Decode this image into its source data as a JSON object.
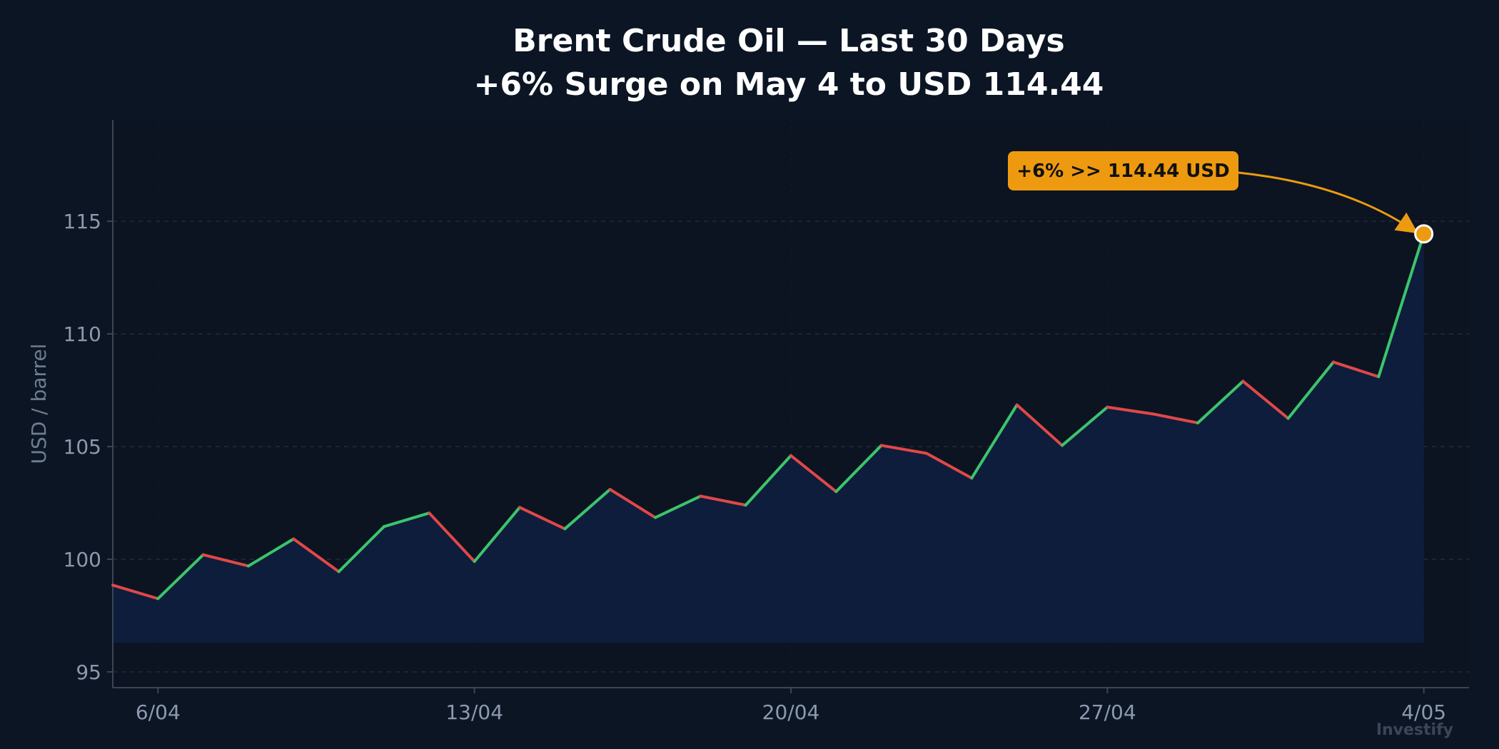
{
  "watermark": "Investify",
  "colors": {
    "background": "#0b1524",
    "plot_background": "#0c1422",
    "area_fill": "#0f1e3d",
    "up": "#3cc46b",
    "down": "#e04848",
    "callout": "#ee9a10",
    "grid": "#1e2b40",
    "axis": "#3a4658",
    "tick_text": "#8d99ad",
    "title": "#ffffff"
  },
  "chart_data": {
    "type": "line",
    "title": "Brent Crude Oil — Last 30 Days",
    "subtitle": "+6% Surge on May 4 to USD 114.44",
    "xlabel": "",
    "ylabel": "USD / barrel",
    "ylim": [
      94.3,
      119.5
    ],
    "xlim": [
      "2025-04-05",
      "2025-05-05"
    ],
    "yticks": [
      95,
      100,
      105,
      110,
      115
    ],
    "xticks": [
      {
        "date": "2025-04-06",
        "label": "6/04"
      },
      {
        "date": "2025-04-13",
        "label": "13/04"
      },
      {
        "date": "2025-04-20",
        "label": "20/04"
      },
      {
        "date": "2025-04-27",
        "label": "27/04"
      },
      {
        "date": "2025-05-04",
        "label": "4/05"
      }
    ],
    "grid": "horizontal dashed",
    "legend": "none",
    "series": [
      {
        "x": [
          "2025-04-05",
          "2025-04-06",
          "2025-04-07",
          "2025-04-08",
          "2025-04-09",
          "2025-04-10",
          "2025-04-11",
          "2025-04-12",
          "2025-04-13",
          "2025-04-14",
          "2025-04-15",
          "2025-04-16",
          "2025-04-17",
          "2025-04-18",
          "2025-04-19",
          "2025-04-20",
          "2025-04-21",
          "2025-04-22",
          "2025-04-23",
          "2025-04-24",
          "2025-04-25",
          "2025-04-26",
          "2025-04-27",
          "2025-04-28",
          "2025-04-29",
          "2025-04-30",
          "2025-05-01",
          "2025-05-02",
          "2025-05-03",
          "2025-05-04"
        ],
        "values": [
          98.85,
          98.25,
          100.2,
          99.7,
          100.9,
          99.45,
          101.45,
          102.05,
          99.9,
          102.3,
          101.35,
          103.1,
          101.85,
          102.8,
          102.4,
          104.6,
          103.0,
          105.05,
          104.7,
          103.6,
          106.85,
          105.05,
          106.75,
          106.45,
          106.05,
          107.9,
          106.25,
          108.75,
          108.1,
          114.44
        ]
      }
    ],
    "annotation": {
      "text": "+6%  >>  114.44 USD",
      "date": "2025-05-04",
      "value": 114.44
    }
  }
}
